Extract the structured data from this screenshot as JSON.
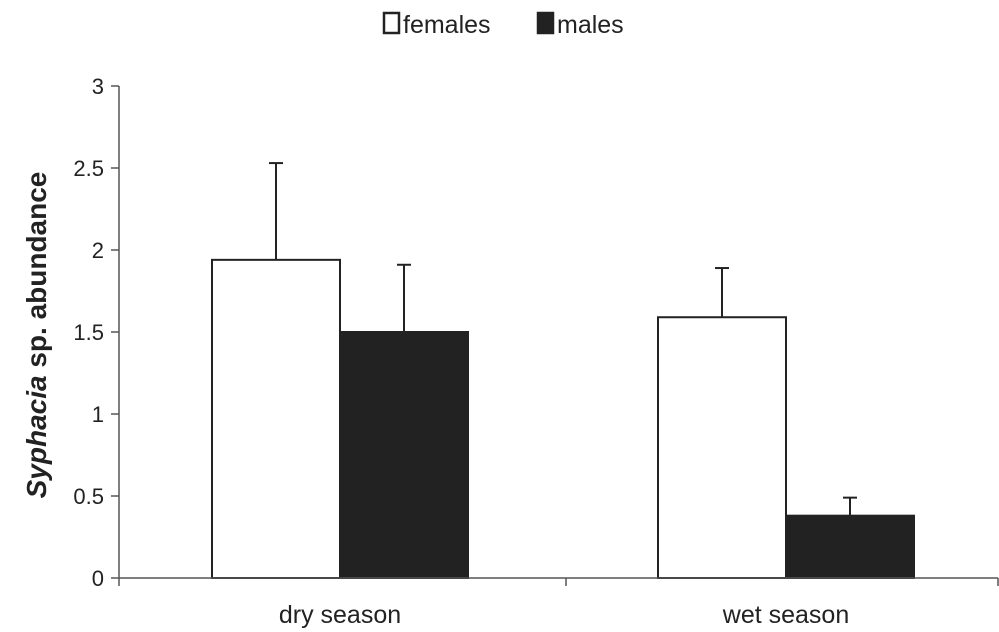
{
  "chart_data": {
    "type": "bar",
    "categories": [
      "dry season",
      "wet season"
    ],
    "series": [
      {
        "name": "females",
        "values": [
          1.94,
          1.59
        ],
        "errors": [
          0.59,
          0.3
        ],
        "fill": "#ffffff"
      },
      {
        "name": "males",
        "values": [
          1.5,
          0.38
        ],
        "errors": [
          0.41,
          0.11
        ],
        "fill": "#222222"
      }
    ],
    "title": "",
    "xlabel": "",
    "ylabel": {
      "italic": "Syphacia",
      "rest": " sp. abundance"
    },
    "ylim": [
      0,
      3
    ],
    "yticks": [
      "0",
      "0.5",
      "1",
      "1.5",
      "2",
      "2.5",
      "3"
    ],
    "grid": false,
    "legend": "top-center",
    "error_bars": "upper"
  }
}
